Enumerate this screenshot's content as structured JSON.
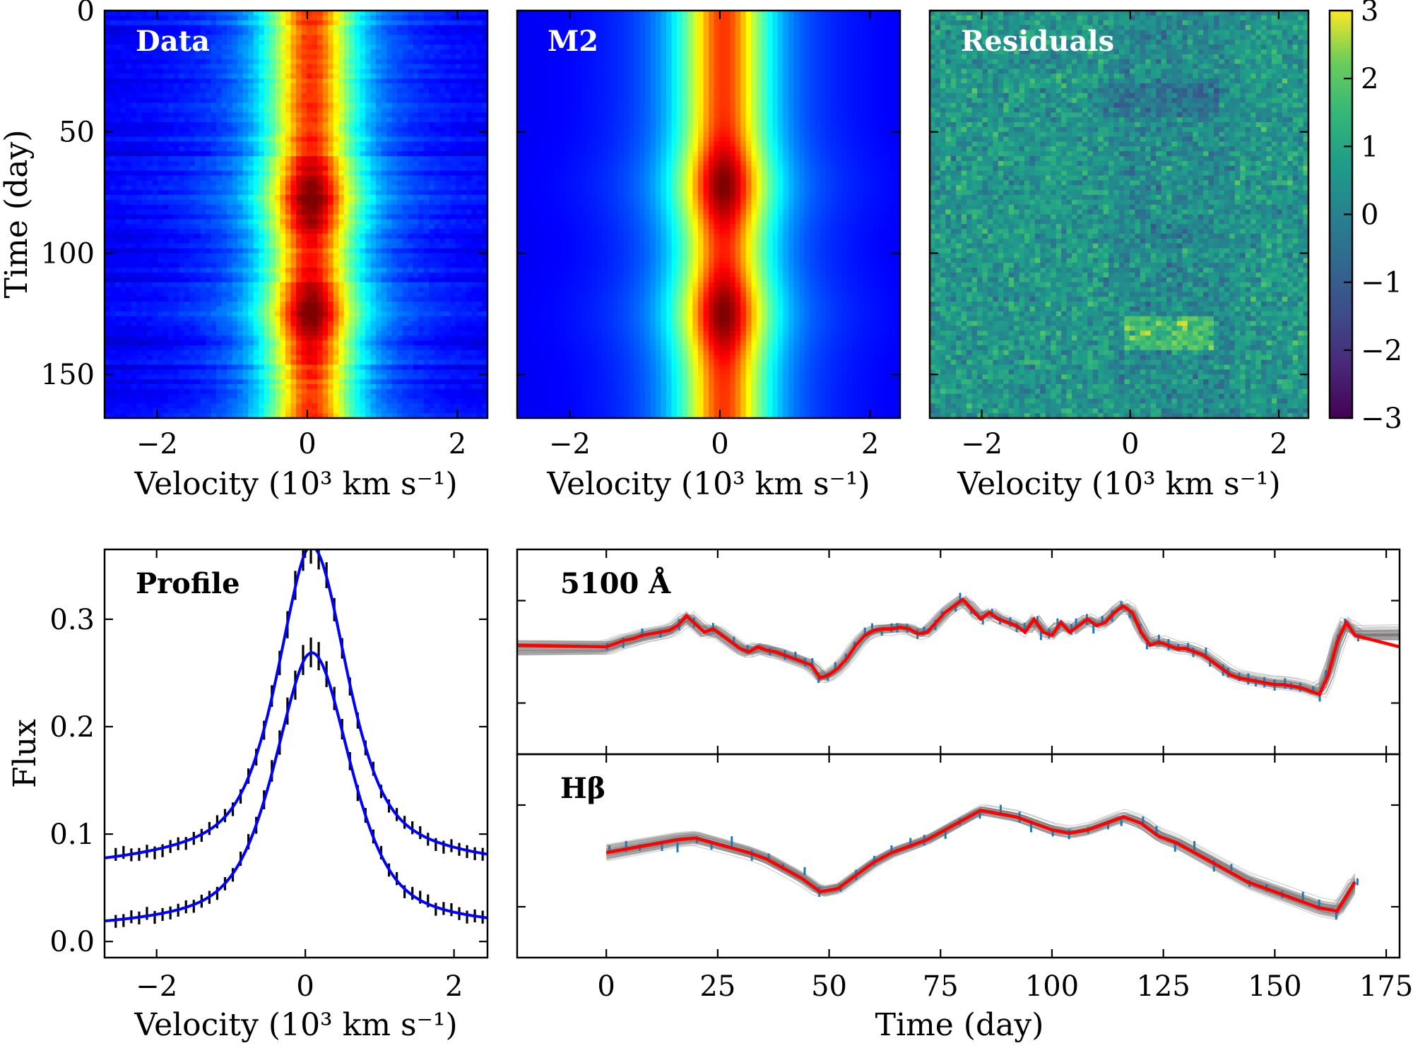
{
  "chart_data": [
    {
      "type": "heatmap",
      "name": "data",
      "title": "Data",
      "xlabel": "Velocity (10³ km s⁻¹)",
      "ylabel": "Time (day)",
      "xlim": [
        -2.7,
        2.4
      ],
      "ylim": [
        168,
        0
      ],
      "xticks": [
        -2,
        0,
        2
      ],
      "xtick_labels": [
        "−2",
        "0",
        "2"
      ],
      "yticks": [
        0,
        50,
        100,
        150
      ],
      "ytick_labels": [
        "0",
        "50",
        "100",
        "150"
      ],
      "colormap": "jet",
      "line_center": 0.05,
      "line_width": 0.55,
      "peak_times": [
        78,
        125
      ]
    },
    {
      "type": "heatmap",
      "name": "model",
      "title": "M2",
      "xlabel": "Velocity (10³ km s⁻¹)",
      "xlim": [
        -2.7,
        2.4
      ],
      "ylim": [
        168,
        0
      ],
      "xticks": [
        -2,
        0,
        2
      ],
      "xtick_labels": [
        "−2",
        "0",
        "2"
      ],
      "colormap": "jet",
      "line_center": 0.05,
      "line_width": 0.55,
      "peak_times": [
        72,
        125
      ]
    },
    {
      "type": "heatmap",
      "name": "residuals",
      "title": "Residuals",
      "xlabel": "Velocity (10³ km s⁻¹)",
      "xlim": [
        -2.7,
        2.4
      ],
      "ylim": [
        168,
        0
      ],
      "xticks": [
        -2,
        0,
        2
      ],
      "xtick_labels": [
        "−2",
        "0",
        "2"
      ],
      "colormap": "viridis",
      "colorbar": {
        "range": [
          -3,
          3
        ],
        "ticks": [
          3,
          2,
          1,
          0,
          -1,
          -2,
          -3
        ],
        "tick_labels": [
          "3",
          "2",
          "1",
          "0",
          "−1",
          "−2",
          "−3"
        ]
      }
    },
    {
      "type": "line",
      "name": "profile",
      "title": "Profile",
      "xlabel": "Velocity (10³ km s⁻¹)",
      "ylabel": "Flux",
      "xlim": [
        -2.7,
        2.45
      ],
      "ylim": [
        -0.015,
        0.365
      ],
      "xticks": [
        -2,
        0,
        2
      ],
      "xtick_labels": [
        "−2",
        "0",
        "2"
      ],
      "yticks": [
        0.0,
        0.1,
        0.2,
        0.3
      ],
      "ytick_labels": [
        "0.0",
        "0.1",
        "0.2",
        "0.3"
      ],
      "series": [
        {
          "name": "mean profile",
          "color": "#0000ff",
          "center": 0.1,
          "fwhm": 1.1,
          "peak": 0.33,
          "wing": 0.065
        },
        {
          "name": "rms profile",
          "color": "#0000ff",
          "center": 0.1,
          "fwhm": 1.2,
          "peak": 0.25,
          "wing": 0.01
        }
      ],
      "errorbar_color": "#000000"
    },
    {
      "type": "line",
      "name": "continuum_5100",
      "title": "5100 Å",
      "xlim": [
        -20,
        178
      ],
      "ylim": [
        0,
        1
      ],
      "series_color": "#ff0000",
      "points_color": "#1f77b4",
      "times": [
        0,
        2,
        4,
        6,
        8,
        10,
        12,
        14,
        16,
        18,
        20,
        22,
        24,
        26,
        28,
        30,
        32,
        34,
        36,
        38,
        40,
        42,
        44,
        46,
        48,
        50,
        52,
        54,
        56,
        58,
        60,
        62,
        64,
        66,
        68,
        70,
        72,
        74,
        76,
        78,
        80,
        82,
        84,
        86,
        88,
        90,
        92,
        94,
        96,
        98,
        100,
        102,
        104,
        106,
        108,
        110,
        112,
        114,
        116,
        118,
        120,
        122,
        124,
        126,
        128,
        130,
        132,
        134,
        136,
        138,
        140,
        142,
        144,
        146,
        148,
        150,
        152,
        154,
        156,
        158,
        160,
        162,
        164,
        166,
        168
      ],
      "flux": [
        0.53,
        0.55,
        0.57,
        0.58,
        0.6,
        0.61,
        0.62,
        0.63,
        0.66,
        0.72,
        0.67,
        0.62,
        0.64,
        0.6,
        0.56,
        0.52,
        0.5,
        0.53,
        0.51,
        0.5,
        0.48,
        0.46,
        0.44,
        0.42,
        0.34,
        0.36,
        0.4,
        0.46,
        0.54,
        0.6,
        0.63,
        0.64,
        0.64,
        0.65,
        0.64,
        0.61,
        0.62,
        0.68,
        0.74,
        0.78,
        0.82,
        0.76,
        0.7,
        0.74,
        0.7,
        0.68,
        0.66,
        0.62,
        0.7,
        0.62,
        0.6,
        0.68,
        0.62,
        0.66,
        0.7,
        0.66,
        0.68,
        0.74,
        0.78,
        0.74,
        0.62,
        0.54,
        0.56,
        0.54,
        0.52,
        0.52,
        0.5,
        0.48,
        0.44,
        0.4,
        0.36,
        0.34,
        0.33,
        0.32,
        0.31,
        0.3,
        0.3,
        0.29,
        0.28,
        0.26,
        0.24,
        0.36,
        0.56,
        0.68,
        0.6
      ]
    },
    {
      "type": "line",
      "name": "hbeta",
      "title": "Hβ",
      "xlabel": "Time (day)",
      "xlim": [
        -20,
        178
      ],
      "ylim": [
        0,
        1
      ],
      "xticks": [
        0,
        25,
        50,
        75,
        100,
        125,
        150,
        175
      ],
      "xtick_labels": [
        "0",
        "25",
        "50",
        "75",
        "100",
        "125",
        "150",
        "175"
      ],
      "series_color": "#ff0000",
      "points_color": "#1f77b4",
      "times": [
        0,
        4,
        8,
        12,
        16,
        20,
        24,
        28,
        32,
        36,
        40,
        44,
        48,
        52,
        56,
        60,
        64,
        68,
        72,
        76,
        80,
        84,
        88,
        92,
        96,
        100,
        104,
        108,
        112,
        116,
        120,
        124,
        128,
        132,
        136,
        140,
        144,
        148,
        152,
        156,
        160,
        164,
        168
      ],
      "flux": [
        0.52,
        0.54,
        0.56,
        0.58,
        0.6,
        0.61,
        0.58,
        0.55,
        0.52,
        0.48,
        0.42,
        0.36,
        0.28,
        0.3,
        0.38,
        0.46,
        0.52,
        0.56,
        0.6,
        0.66,
        0.72,
        0.78,
        0.76,
        0.74,
        0.7,
        0.66,
        0.64,
        0.66,
        0.7,
        0.74,
        0.7,
        0.62,
        0.58,
        0.52,
        0.46,
        0.4,
        0.34,
        0.3,
        0.26,
        0.22,
        0.18,
        0.16,
        0.34
      ]
    }
  ]
}
